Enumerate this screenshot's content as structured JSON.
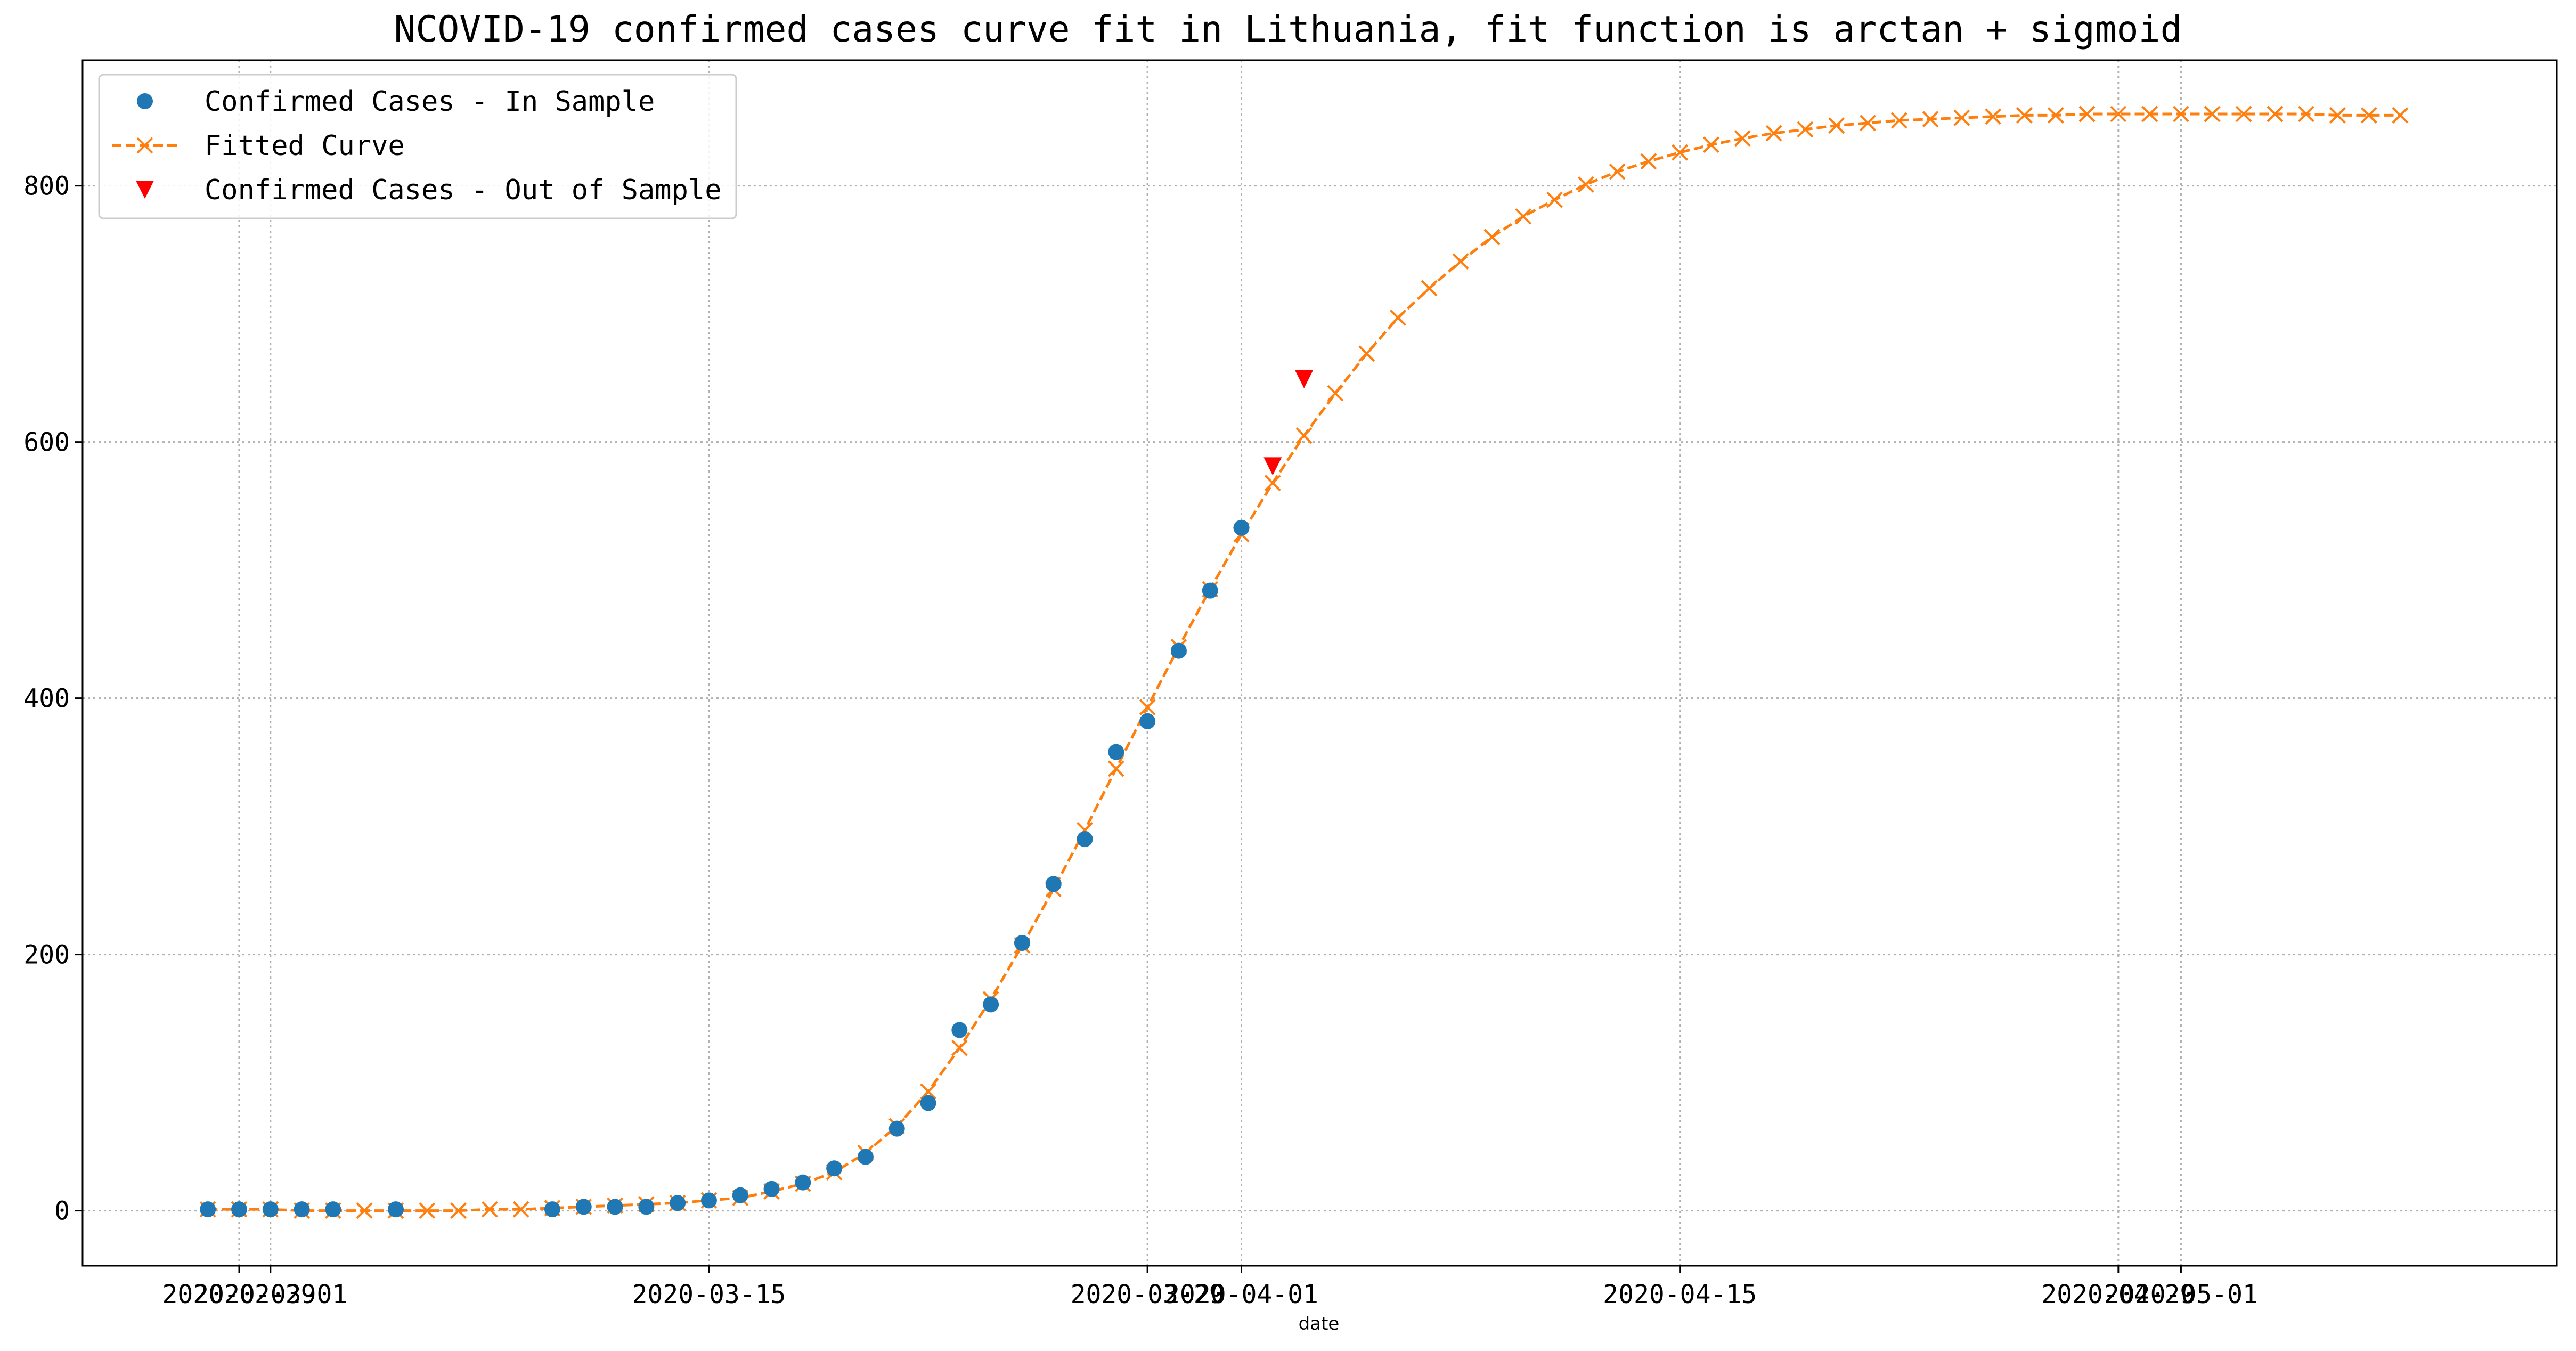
{
  "chart_data": {
    "type": "line",
    "title": "NCOVID-19 confirmed cases curve fit in Lithuania, fit function is arctan + sigmoid",
    "xlabel": "date",
    "ylabel": "",
    "x_axis": {
      "type": "date",
      "min": "2020-02-24",
      "max": "2020-05-13",
      "tick_labels": [
        "2020-02-29",
        "2020-03-01",
        "2020-03-15",
        "2020-03-29",
        "2020-04-01",
        "2020-04-15",
        "2020-04-29",
        "2020-05-01"
      ]
    },
    "y_axis": {
      "min": -43,
      "max": 898,
      "ticks": [
        0,
        200,
        400,
        600,
        800
      ]
    },
    "grid": true,
    "legend_position": "top-left",
    "series": [
      {
        "name": "Confirmed Cases - In Sample",
        "style": "markers",
        "marker": "circle",
        "color": "#1f77b4",
        "points": [
          [
            "2020-02-28",
            1
          ],
          [
            "2020-02-29",
            1
          ],
          [
            "2020-03-01",
            1
          ],
          [
            "2020-03-02",
            1
          ],
          [
            "2020-03-03",
            1
          ],
          [
            "2020-03-05",
            1
          ],
          [
            "2020-03-10",
            1
          ],
          [
            "2020-03-11",
            3
          ],
          [
            "2020-03-12",
            3
          ],
          [
            "2020-03-13",
            3
          ],
          [
            "2020-03-14",
            6
          ],
          [
            "2020-03-15",
            8
          ],
          [
            "2020-03-16",
            12
          ],
          [
            "2020-03-17",
            17
          ],
          [
            "2020-03-18",
            22
          ],
          [
            "2020-03-19",
            33
          ],
          [
            "2020-03-20",
            42
          ],
          [
            "2020-03-21",
            64
          ],
          [
            "2020-03-22",
            84
          ],
          [
            "2020-03-23",
            141
          ],
          [
            "2020-03-24",
            161
          ],
          [
            "2020-03-25",
            209
          ],
          [
            "2020-03-26",
            255
          ],
          [
            "2020-03-27",
            290
          ],
          [
            "2020-03-28",
            358
          ],
          [
            "2020-03-29",
            382
          ],
          [
            "2020-03-30",
            437
          ],
          [
            "2020-03-31",
            484
          ],
          [
            "2020-04-01",
            533
          ]
        ]
      },
      {
        "name": "Fitted Curve",
        "style": "dashed-line-x-markers",
        "color": "#ff7f0e",
        "points": [
          [
            "2020-02-28",
            1
          ],
          [
            "2020-02-29",
            1
          ],
          [
            "2020-03-01",
            1
          ],
          [
            "2020-03-02",
            0
          ],
          [
            "2020-03-03",
            0
          ],
          [
            "2020-03-04",
            0
          ],
          [
            "2020-03-05",
            0
          ],
          [
            "2020-03-06",
            0
          ],
          [
            "2020-03-07",
            0
          ],
          [
            "2020-03-08",
            1
          ],
          [
            "2020-03-09",
            1
          ],
          [
            "2020-03-10",
            2
          ],
          [
            "2020-03-11",
            3
          ],
          [
            "2020-03-12",
            4
          ],
          [
            "2020-03-13",
            5
          ],
          [
            "2020-03-14",
            6
          ],
          [
            "2020-03-15",
            8
          ],
          [
            "2020-03-16",
            10
          ],
          [
            "2020-03-17",
            15
          ],
          [
            "2020-03-18",
            21
          ],
          [
            "2020-03-19",
            30
          ],
          [
            "2020-03-20",
            45
          ],
          [
            "2020-03-21",
            66
          ],
          [
            "2020-03-22",
            93
          ],
          [
            "2020-03-23",
            127
          ],
          [
            "2020-03-24",
            165
          ],
          [
            "2020-03-25",
            207
          ],
          [
            "2020-03-26",
            251
          ],
          [
            "2020-03-27",
            297
          ],
          [
            "2020-03-28",
            345
          ],
          [
            "2020-03-29",
            393
          ],
          [
            "2020-03-30",
            440
          ],
          [
            "2020-03-31",
            485
          ],
          [
            "2020-04-01",
            528
          ],
          [
            "2020-04-02",
            568
          ],
          [
            "2020-04-03",
            605
          ],
          [
            "2020-04-04",
            638
          ],
          [
            "2020-04-05",
            669
          ],
          [
            "2020-04-06",
            697
          ],
          [
            "2020-04-07",
            720
          ],
          [
            "2020-04-08",
            741
          ],
          [
            "2020-04-09",
            760
          ],
          [
            "2020-04-10",
            776
          ],
          [
            "2020-04-11",
            789
          ],
          [
            "2020-04-12",
            801
          ],
          [
            "2020-04-13",
            811
          ],
          [
            "2020-04-14",
            819
          ],
          [
            "2020-04-15",
            826
          ],
          [
            "2020-04-16",
            832
          ],
          [
            "2020-04-17",
            837
          ],
          [
            "2020-04-18",
            841
          ],
          [
            "2020-04-19",
            844
          ],
          [
            "2020-04-20",
            847
          ],
          [
            "2020-04-21",
            849
          ],
          [
            "2020-04-22",
            851
          ],
          [
            "2020-04-23",
            852
          ],
          [
            "2020-04-24",
            853
          ],
          [
            "2020-04-25",
            854
          ],
          [
            "2020-04-26",
            855
          ],
          [
            "2020-04-27",
            855
          ],
          [
            "2020-04-28",
            856
          ],
          [
            "2020-04-29",
            856
          ],
          [
            "2020-04-30",
            856
          ],
          [
            "2020-05-01",
            856
          ],
          [
            "2020-05-02",
            856
          ],
          [
            "2020-05-03",
            856
          ],
          [
            "2020-05-04",
            856
          ],
          [
            "2020-05-05",
            856
          ],
          [
            "2020-05-06",
            855
          ],
          [
            "2020-05-07",
            855
          ],
          [
            "2020-05-08",
            855
          ]
        ]
      },
      {
        "name": "Confirmed Cases - Out of Sample",
        "style": "markers",
        "marker": "triangle-down",
        "color": "#ff0000",
        "points": [
          [
            "2020-04-02",
            581
          ],
          [
            "2020-04-03",
            649
          ]
        ]
      }
    ]
  }
}
